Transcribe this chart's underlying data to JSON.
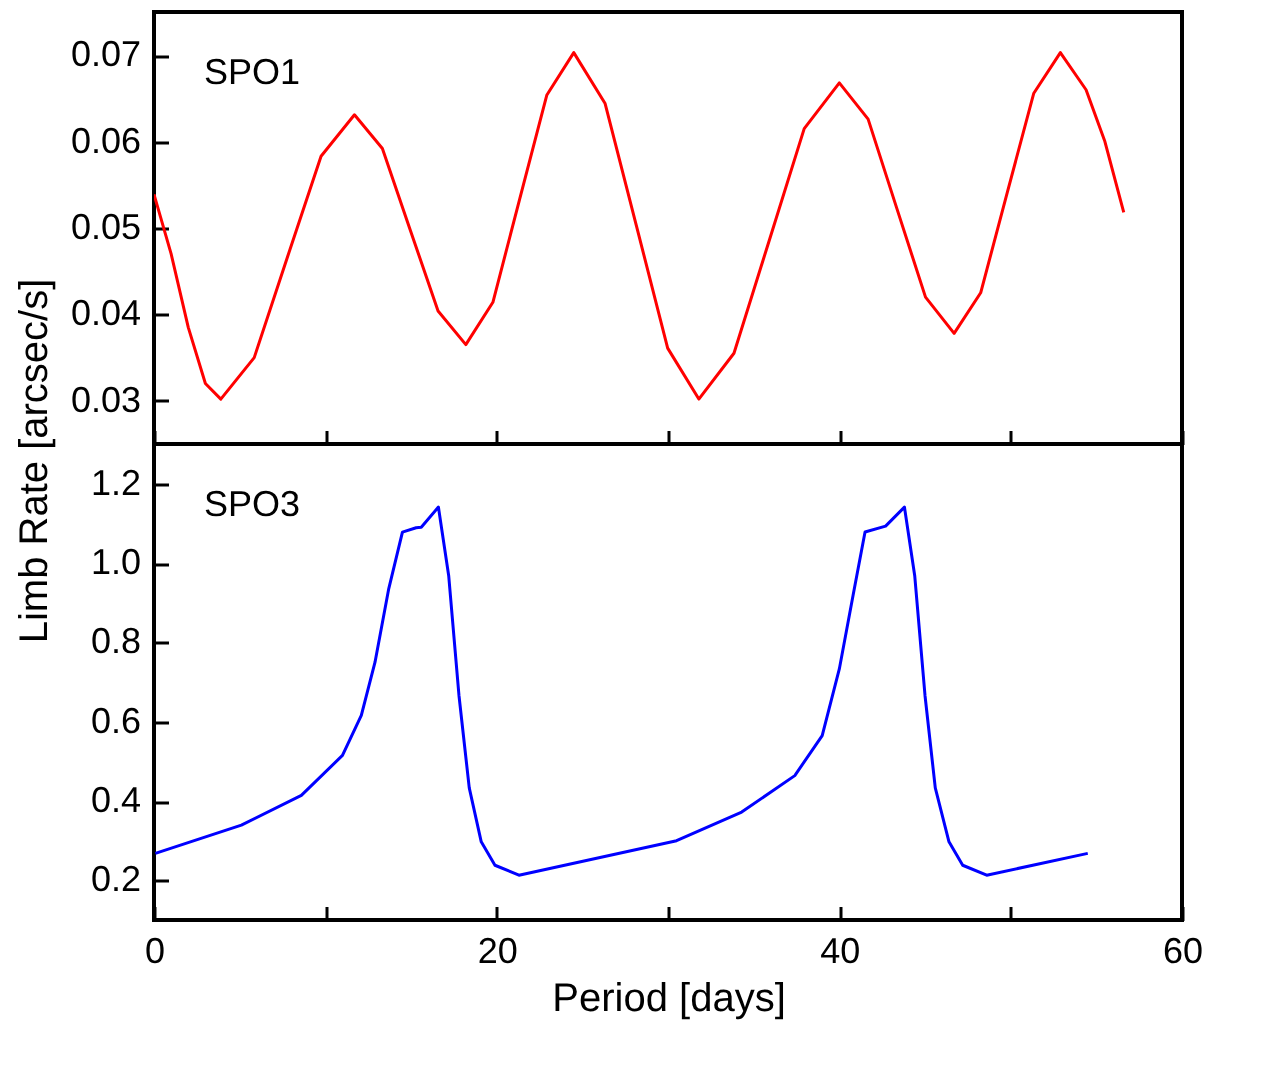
{
  "chart_data": [
    {
      "type": "line",
      "annotations": [
        "SPO1"
      ],
      "xlim": [
        0,
        60
      ],
      "xticks": [
        0,
        {
          "value": 10,
          "label": null
        },
        20,
        {
          "value": 30,
          "label": null
        },
        40,
        {
          "value": 50,
          "label": null
        },
        60
      ],
      "ylim": [
        0.025,
        0.075
      ],
      "yticks": [
        0.03,
        0.04,
        0.05,
        0.06,
        0.07
      ],
      "tick_labels": "y",
      "grid": false,
      "marker": "none",
      "line_style": "solid",
      "series": [
        {
          "color": "#ff0000",
          "x": [
            0,
            1,
            2,
            3,
            3.9,
            5.85,
            7.8,
            9.75,
            11.7,
            13.33,
            14.95,
            16.58,
            18.2,
            19.78,
            21.35,
            22.93,
            24.5,
            26.33,
            28.15,
            29.98,
            31.8,
            33.85,
            35.9,
            37.95,
            40.0,
            41.68,
            43.35,
            45.03,
            46.7,
            48.25,
            49.8,
            51.35,
            52.9,
            54.4,
            55.5,
            56.6
          ],
          "values": [
            0.0539,
            0.047,
            0.0385,
            0.032,
            0.0302,
            0.035,
            0.0467,
            0.0583,
            0.0631,
            0.0592,
            0.0498,
            0.0404,
            0.0365,
            0.0414,
            0.0534,
            0.0654,
            0.0703,
            0.0644,
            0.0503,
            0.0361,
            0.0302,
            0.0355,
            0.0485,
            0.0615,
            0.0668,
            0.0626,
            0.0523,
            0.042,
            0.0378,
            0.0425,
            0.0541,
            0.0656,
            0.0703,
            0.066,
            0.06,
            0.0518
          ]
        }
      ]
    },
    {
      "type": "line",
      "annotations": [
        "SPO3"
      ],
      "xlabel": "Period [days]",
      "ylabel": "Limb Rate [arcsec/s]",
      "xlim": [
        0,
        60
      ],
      "xticks": [
        0,
        {
          "value": 10,
          "label": null
        },
        20,
        {
          "value": 30,
          "label": null
        },
        40,
        {
          "value": 50,
          "label": null
        },
        60
      ],
      "ylim": [
        0.1,
        1.3
      ],
      "yticks": [
        0.2,
        0.4,
        0.6,
        0.8,
        {
          "value": 1,
          "label": "1.0"
        },
        1.2
      ],
      "grid": false,
      "marker": "none",
      "line_style": "solid",
      "series": [
        {
          "color": "#0000ff",
          "x": [
            0.08,
            5.1,
            8.6,
            11.0,
            12.1,
            12.9,
            13.7,
            14.5,
            15.3,
            15.6,
            16.6,
            17.2,
            17.8,
            18.4,
            19.1,
            19.9,
            21.3,
            30.5,
            34.3,
            37.4,
            39.0,
            40.0,
            40.8,
            41.5,
            42.7,
            43.8,
            44.4,
            45.0,
            45.6,
            46.4,
            47.2,
            48.6,
            54.5
          ],
          "values": [
            0.268,
            0.339,
            0.414,
            0.515,
            0.616,
            0.75,
            0.935,
            1.078,
            1.089,
            1.09,
            1.141,
            0.968,
            0.666,
            0.433,
            0.297,
            0.238,
            0.213,
            0.3,
            0.372,
            0.464,
            0.565,
            0.733,
            0.918,
            1.078,
            1.093,
            1.141,
            0.968,
            0.666,
            0.433,
            0.297,
            0.238,
            0.213,
            0.268
          ]
        }
      ]
    }
  ]
}
